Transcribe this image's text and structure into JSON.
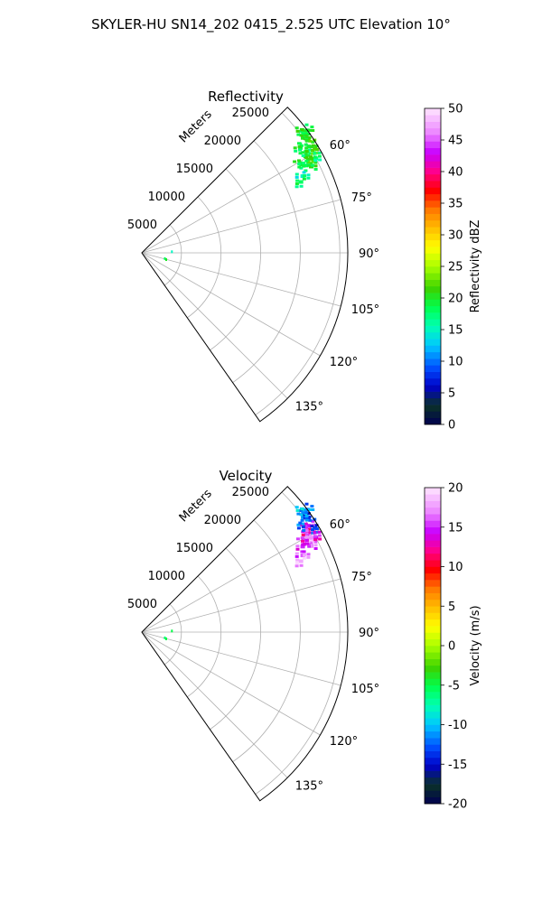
{
  "figure": {
    "title": "SKYLER-HU  SN14_202  0415_2.525 UTC Elevation 10°"
  },
  "chart_data": [
    {
      "type": "polar-sector",
      "title": "Reflectivity",
      "radial_label": "Meters",
      "theta_range_deg": [
        45,
        145
      ],
      "theta_ticks": [
        60,
        75,
        90,
        105,
        120,
        135
      ],
      "theta_tick_labels": [
        "60°",
        "75°",
        "90°",
        "105°",
        "120°",
        "135°"
      ],
      "r_max": 26000,
      "r_ticks": [
        5000,
        10000,
        15000,
        20000,
        25000
      ],
      "r_tick_labels": [
        "5000",
        "10000",
        "15000",
        "20000",
        "25000"
      ],
      "grid": true,
      "colorbar": {
        "label": "Reflectivity dBZ",
        "range": [
          0,
          50
        ],
        "ticks": [
          0,
          5,
          10,
          15,
          20,
          25,
          30,
          35,
          40,
          45,
          50
        ],
        "tick_labels": [
          "0",
          "5",
          "10",
          "15",
          "20",
          "25",
          "30",
          "35",
          "40",
          "45",
          "50"
        ]
      },
      "returns": [
        {
          "theta": 63,
          "r": 24000,
          "value": 20
        },
        {
          "theta": 62,
          "r": 23500,
          "value": 18
        },
        {
          "theta": 61,
          "r": 24500,
          "value": 21
        },
        {
          "theta": 60.5,
          "r": 23000,
          "value": 19
        },
        {
          "theta": 59.5,
          "r": 24000,
          "value": 20
        },
        {
          "theta": 58.5,
          "r": 24500,
          "value": 18
        },
        {
          "theta": 57.5,
          "r": 25000,
          "value": 20
        },
        {
          "theta": 56.5,
          "r": 24000,
          "value": 19
        },
        {
          "theta": 55.5,
          "r": 25500,
          "value": 21
        },
        {
          "theta": 54.5,
          "r": 25000,
          "value": 20
        },
        {
          "theta": 53.5,
          "r": 26000,
          "value": 19
        },
        {
          "theta": 52.5,
          "r": 25500,
          "value": 20
        },
        {
          "theta": 59,
          "r": 25500,
          "value": 22
        },
        {
          "theta": 61.5,
          "r": 25000,
          "value": 17
        },
        {
          "theta": 64.5,
          "r": 22500,
          "value": 15
        },
        {
          "theta": 66,
          "r": 22000,
          "value": 18
        },
        {
          "theta": 88,
          "r": 3800,
          "value": 15
        },
        {
          "theta": 104,
          "r": 3000,
          "value": 18
        },
        {
          "theta": 105.5,
          "r": 3200,
          "value": 20
        }
      ]
    },
    {
      "type": "polar-sector",
      "title": "Velocity",
      "radial_label": "Meters",
      "theta_range_deg": [
        45,
        145
      ],
      "theta_ticks": [
        60,
        75,
        90,
        105,
        120,
        135
      ],
      "theta_tick_labels": [
        "60°",
        "75°",
        "90°",
        "105°",
        "120°",
        "135°"
      ],
      "r_max": 26000,
      "r_ticks": [
        5000,
        10000,
        15000,
        20000,
        25000
      ],
      "r_tick_labels": [
        "5000",
        "10000",
        "15000",
        "20000",
        "25000"
      ],
      "grid": true,
      "colorbar": {
        "label": "Velocity (m/s)",
        "range": [
          -20,
          20
        ],
        "ticks": [
          -20,
          -15,
          -10,
          -5,
          0,
          5,
          10,
          15,
          20
        ],
        "tick_labels": [
          "-20",
          "-15",
          "-10",
          "-5",
          "0",
          "5",
          "10",
          "15",
          "20"
        ]
      },
      "returns": [
        {
          "theta": 63,
          "r": 24000,
          "value": 16
        },
        {
          "theta": 62,
          "r": 23000,
          "value": 15
        },
        {
          "theta": 61,
          "r": 24500,
          "value": 17
        },
        {
          "theta": 60.5,
          "r": 23500,
          "value": 14
        },
        {
          "theta": 59.5,
          "r": 24000,
          "value": 16
        },
        {
          "theta": 58.5,
          "r": 24500,
          "value": 13
        },
        {
          "theta": 57.5,
          "r": 25000,
          "value": 15
        },
        {
          "theta": 56.5,
          "r": 24500,
          "value": -12
        },
        {
          "theta": 55.5,
          "r": 25500,
          "value": -14
        },
        {
          "theta": 54.5,
          "r": 25000,
          "value": -11
        },
        {
          "theta": 53.5,
          "r": 26000,
          "value": -12
        },
        {
          "theta": 52.5,
          "r": 25500,
          "value": -10
        },
        {
          "theta": 59,
          "r": 25500,
          "value": -13
        },
        {
          "theta": 61.5,
          "r": 25000,
          "value": 14
        },
        {
          "theta": 64.5,
          "r": 22500,
          "value": 16
        },
        {
          "theta": 66,
          "r": 22000,
          "value": 18
        },
        {
          "theta": 88,
          "r": 3800,
          "value": -5
        },
        {
          "theta": 104,
          "r": 3000,
          "value": -6
        },
        {
          "theta": 105.5,
          "r": 3200,
          "value": -5
        }
      ]
    }
  ]
}
